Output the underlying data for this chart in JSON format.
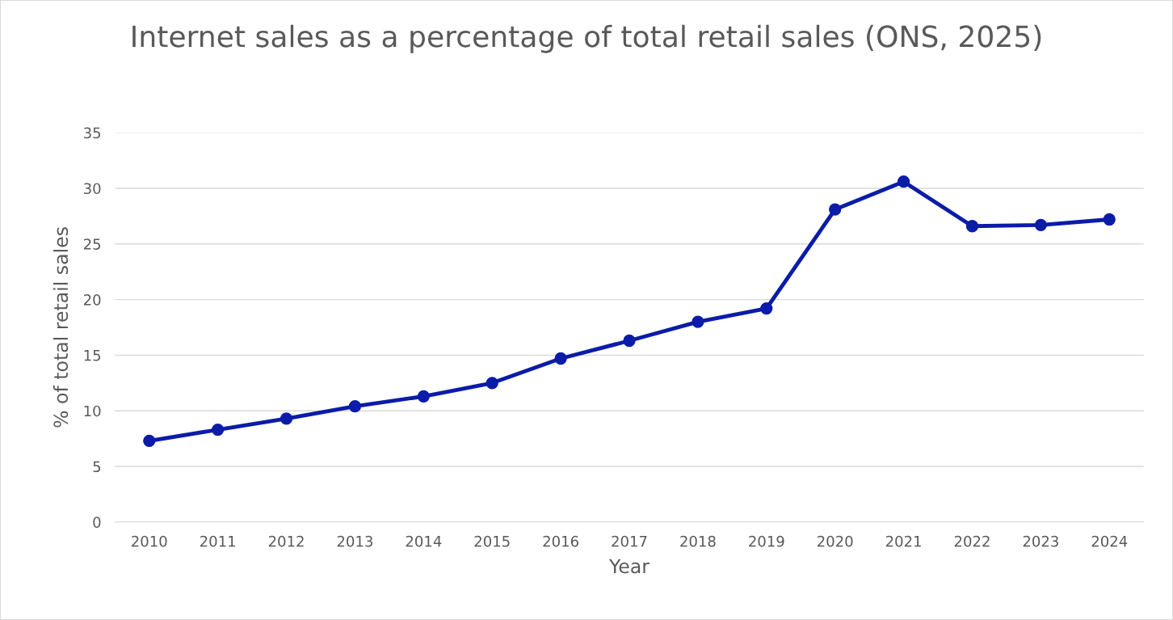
{
  "chart_data": {
    "type": "line",
    "title": "Internet sales as a percentage of total retail sales (ONS, 2025)",
    "xlabel": "Year",
    "ylabel": "% of total retail sales",
    "categories": [
      "2010",
      "2011",
      "2012",
      "2013",
      "2014",
      "2015",
      "2016",
      "2017",
      "2018",
      "2019",
      "2020",
      "2021",
      "2022",
      "2023",
      "2024"
    ],
    "series": [
      {
        "color": "#0b1ca8",
        "values": [
          7.3,
          8.3,
          9.3,
          10.4,
          11.3,
          12.5,
          14.7,
          16.3,
          18.0,
          19.2,
          28.1,
          30.6,
          26.6,
          26.7,
          27.2
        ]
      }
    ],
    "ylim": [
      0,
      35
    ],
    "yticks": [
      0,
      5,
      10,
      15,
      20,
      25,
      30,
      35
    ],
    "grid": "y",
    "marker": "circle",
    "line_style": "solid"
  }
}
